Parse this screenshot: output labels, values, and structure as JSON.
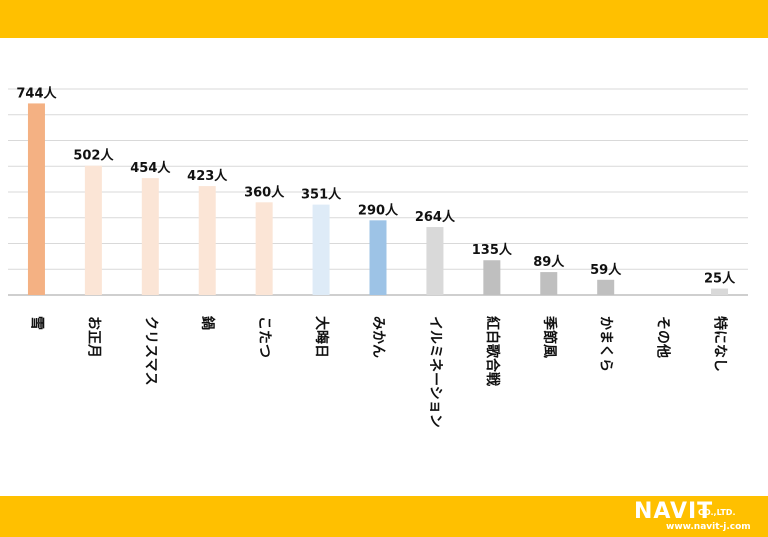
{
  "colors": {
    "band": "#ffc000",
    "grid": "#d9d9d9",
    "axis": "#bfbfbf",
    "text": "#111111",
    "logo_text": "#ffffff"
  },
  "logo": {
    "main": "NAVIT",
    "company_suffix": "CO.,LTD.",
    "url": "www.navit-j.com"
  },
  "chart_data": {
    "type": "bar",
    "title": "",
    "xlabel": "",
    "ylabel": "",
    "ylim": [
      0,
      800
    ],
    "grid": true,
    "gridlines": 8,
    "categories": [
      "雪",
      "お正月",
      "クリスマス",
      "鍋",
      "こたつ",
      "大晦日",
      "みかん",
      "イルミネーション",
      "紅白歌合戦",
      "季節風",
      "かまくら",
      "その他",
      "特になし"
    ],
    "values": [
      744,
      502,
      454,
      423,
      360,
      351,
      290,
      264,
      135,
      89,
      59,
      0,
      25
    ],
    "data_labels": [
      "744人",
      "502人",
      "454人",
      "423人",
      "360人",
      "351人",
      "290人",
      "264人",
      "135人",
      "89人",
      "59人",
      "",
      "25人"
    ],
    "bar_colors": [
      "#f4b183",
      "#fbe5d6",
      "#fbe5d6",
      "#fbe5d6",
      "#fbe5d6",
      "#deebf7",
      "#9dc3e6",
      "#d9d9d9",
      "#bfbfbf",
      "#bfbfbf",
      "#bfbfbf",
      "#d9d9d9",
      "#d9d9d9"
    ]
  }
}
